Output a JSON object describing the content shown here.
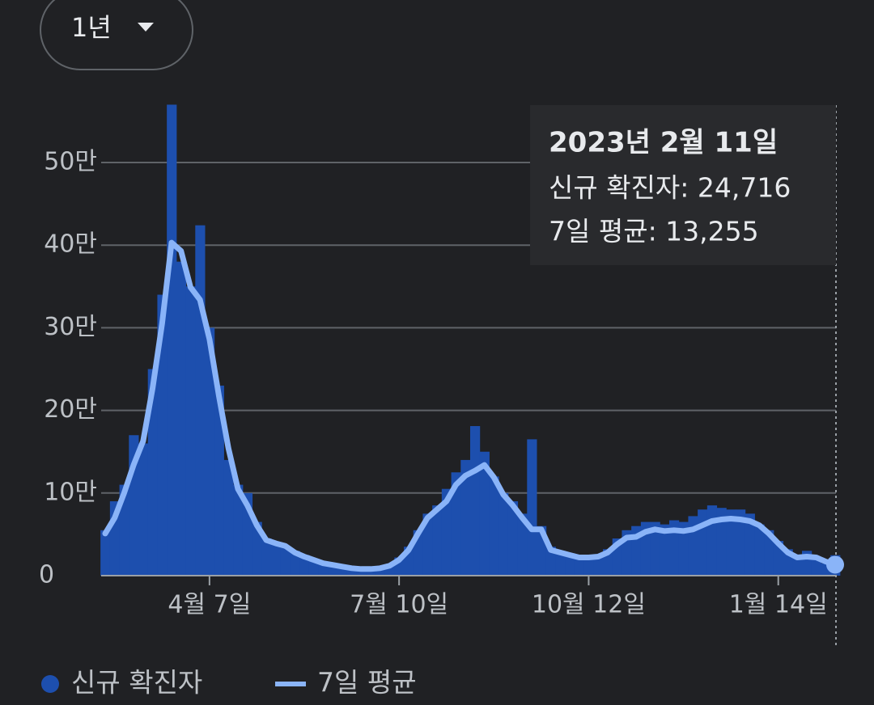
{
  "ui": {
    "range_button": "1년"
  },
  "tooltip": {
    "title": "2023년 2월 11일",
    "lines": [
      "신규 확진자: 24,716",
      "7일 평균: 13,255"
    ]
  },
  "chart_data": {
    "type": "bar",
    "categories": [
      null,
      null,
      null,
      null,
      null,
      null,
      null,
      null,
      null,
      null,
      null,
      "4월 7일",
      null,
      null,
      null,
      null,
      null,
      null,
      null,
      null,
      null,
      null,
      null,
      null,
      null,
      null,
      null,
      null,
      null,
      null,
      null,
      "7월 10일",
      null,
      null,
      null,
      null,
      null,
      null,
      null,
      null,
      null,
      null,
      null,
      null,
      null,
      null,
      null,
      null,
      null,
      null,
      null,
      "10월 12일",
      null,
      null,
      null,
      null,
      null,
      null,
      null,
      null,
      null,
      null,
      null,
      null,
      null,
      null,
      null,
      null,
      null,
      null,
      null,
      "1월 14일",
      null,
      null,
      null,
      null,
      null,
      null
    ],
    "series": [
      {
        "name": "신규 확진자",
        "type": "bar",
        "color": "#1d4fae",
        "values": [
          55000,
          90000,
          110000,
          170000,
          160000,
          250000,
          340000,
          570000,
          380000,
          350000,
          424000,
          300000,
          230000,
          140000,
          110000,
          100000,
          65000,
          45000,
          40000,
          35000,
          30000,
          25000,
          20000,
          16000,
          13000,
          11000,
          9000,
          8000,
          8000,
          9000,
          13000,
          22000,
          35000,
          55000,
          75000,
          85000,
          105000,
          125000,
          140000,
          181000,
          150000,
          120000,
          100000,
          90000,
          75000,
          165000,
          60000,
          35000,
          30000,
          27000,
          24000,
          25000,
          26000,
          32000,
          45000,
          55000,
          60000,
          65000,
          65000,
          62000,
          67000,
          65000,
          72000,
          80000,
          85000,
          82000,
          80000,
          80000,
          75000,
          62000,
          55000,
          42000,
          32000,
          25000,
          30000,
          22000,
          15000,
          24716
        ]
      },
      {
        "name": "7일 평균",
        "type": "line",
        "color": "#8ab4f8",
        "values": [
          51000,
          70000,
          100000,
          134000,
          163000,
          227000,
          305000,
          403000,
          393000,
          349000,
          334000,
          286000,
          217000,
          154000,
          105000,
          85000,
          61000,
          43000,
          39000,
          36000,
          28000,
          23000,
          19000,
          15000,
          13000,
          11000,
          9000,
          8000,
          8000,
          9000,
          12000,
          19000,
          31000,
          51000,
          70000,
          80000,
          90000,
          110000,
          121000,
          127000,
          134000,
          119000,
          98000,
          85000,
          70000,
          56000,
          56000,
          31000,
          28000,
          25000,
          22000,
          22000,
          23000,
          28000,
          38000,
          46000,
          47000,
          53000,
          56000,
          54000,
          55000,
          54000,
          56000,
          61000,
          66000,
          68000,
          69000,
          68000,
          66000,
          61000,
          51000,
          39000,
          28000,
          22000,
          23000,
          22000,
          17000,
          13255
        ]
      }
    ],
    "ylim": [
      0,
      570000
    ],
    "yticks": [
      {
        "value": 0,
        "label": "0"
      },
      {
        "value": 100000,
        "label": "10만"
      },
      {
        "value": 200000,
        "label": "20만"
      },
      {
        "value": 300000,
        "label": "30만"
      },
      {
        "value": 400000,
        "label": "40만"
      },
      {
        "value": 500000,
        "label": "50만"
      }
    ],
    "grid": true,
    "legend": "bottom-left"
  }
}
